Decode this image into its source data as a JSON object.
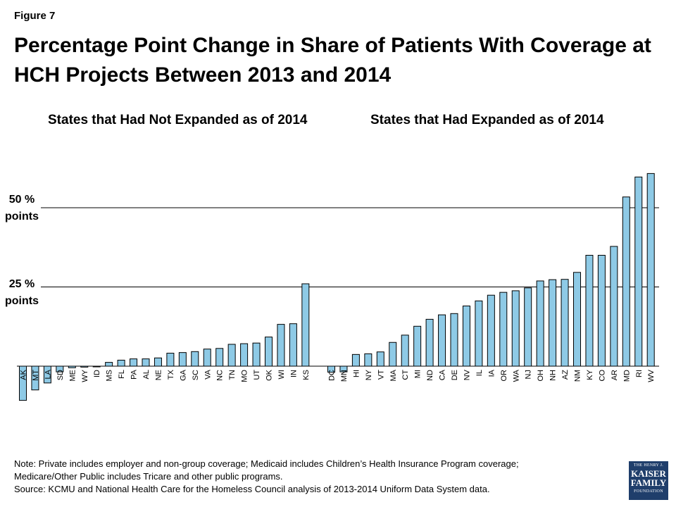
{
  "figure_label": "Figure 7",
  "title": "Percentage Point Change in Share of Patients With Coverage at HCH Projects Between 2013 and 2014",
  "reference_lines": [
    {
      "value": 50,
      "label_line1": "50 %",
      "label_line2": "points"
    },
    {
      "value": 25,
      "label_line1": "25 %",
      "label_line2": "points"
    }
  ],
  "chart_data": {
    "type": "bar",
    "ylim": [
      -11,
      61
    ],
    "bar_color": "#8ecae6",
    "groups": [
      {
        "title": "States that Had Not Expanded as of 2014",
        "categories": [
          "AK",
          "MT",
          "LA",
          "SD",
          "ME",
          "WY",
          "ID",
          "MS",
          "FL",
          "PA",
          "AL",
          "NE",
          "TX",
          "GA",
          "SC",
          "VA",
          "NC",
          "TN",
          "MO",
          "UT",
          "OK",
          "WI",
          "IN",
          "KS"
        ],
        "values": [
          -10.8,
          -7.5,
          -5.3,
          -1.8,
          -0.5,
          -0.3,
          -0.1,
          1.2,
          1.9,
          2.3,
          2.3,
          2.6,
          4.1,
          4.3,
          4.6,
          5.4,
          5.6,
          6.9,
          7.1,
          7.3,
          9.2,
          13.2,
          13.4,
          26.0
        ]
      },
      {
        "title": "States that Had Expanded as of 2014",
        "categories": [
          "DC",
          "MN",
          "HI",
          "NY",
          "VT",
          "MA",
          "CT",
          "MI",
          "ND",
          "CA",
          "DE",
          "NV",
          "IL",
          "IA",
          "OR",
          "WA",
          "NJ",
          "OH",
          "NH",
          "AZ",
          "NM",
          "KY",
          "CO",
          "AR",
          "MD",
          "RI",
          "WV"
        ],
        "values": [
          -1.9,
          -1.8,
          3.7,
          3.9,
          4.5,
          7.5,
          9.8,
          12.6,
          14.8,
          16.2,
          16.6,
          19.0,
          20.6,
          22.4,
          23.3,
          23.8,
          24.7,
          26.9,
          27.3,
          27.4,
          29.6,
          35.0,
          35.0,
          37.8,
          53.4,
          59.7,
          60.8
        ]
      }
    ]
  },
  "note_lines": [
    "Note: Private includes employer and non-group coverage; Medicaid includes Children’s Health Insurance Program coverage;",
    "Medicare/Other Public includes Tricare and other public programs.",
    "Source: KCMU and National Health Care for the Homeless Council analysis of 2013-2014 Uniform Data System data."
  ],
  "logo": {
    "line1": "THE HENRY J.",
    "line2": "KAISER",
    "line3": "FAMILY",
    "line4": "FOUNDATION",
    "color": "#1f3e6b"
  }
}
